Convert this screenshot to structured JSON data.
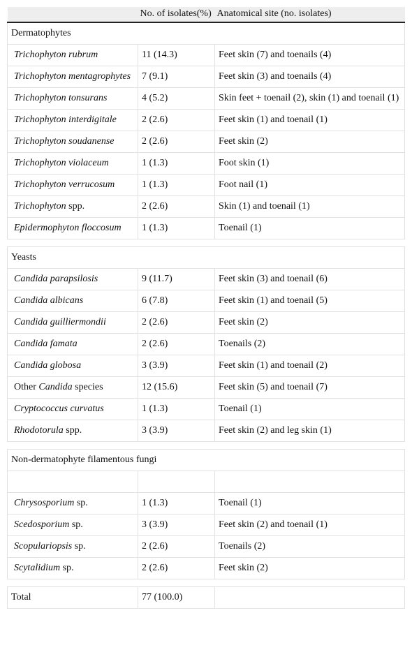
{
  "table": {
    "header": {
      "count": "No. of isolates(%)",
      "site": "Anatomical site (no. isolates)"
    },
    "sections": [
      {
        "title": "Dermatophytes",
        "rows": [
          {
            "name": [
              {
                "text": "Trichophyton rubrum",
                "italic": true
              }
            ],
            "count": "11 (14.3)",
            "site": "Feet skin (7) and toenails (4)"
          },
          {
            "name": [
              {
                "text": "Trichophyton mentagrophytes",
                "italic": true
              }
            ],
            "count": "7 (9.1)",
            "site": "Feet skin (3) and toenails (4)"
          },
          {
            "name": [
              {
                "text": "Trichophyton tonsurans",
                "italic": true
              }
            ],
            "count": "4 (5.2)",
            "site": "Skin feet + toenail (2), skin (1) and toenail (1)"
          },
          {
            "name": [
              {
                "text": "Trichophyton interdigitale",
                "italic": true
              }
            ],
            "count": "2 (2.6)",
            "site": "Feet skin (1) and toenail (1)"
          },
          {
            "name": [
              {
                "text": "Trichophyton soudanense",
                "italic": true
              }
            ],
            "count": "2 (2.6)",
            "site": "Feet skin (2)"
          },
          {
            "name": [
              {
                "text": "Trichophyton violaceum",
                "italic": true
              }
            ],
            "count": "1 (1.3)",
            "site": "Foot skin (1)"
          },
          {
            "name": [
              {
                "text": "Trichophyton verrucosum",
                "italic": true
              }
            ],
            "count": "1 (1.3)",
            "site": "Foot nail (1)"
          },
          {
            "name": [
              {
                "text": "Trichophyton",
                "italic": true
              },
              {
                "text": "spp.",
                "italic": false
              }
            ],
            "count": "2 (2.6)",
            "site": "Skin (1) and toenail (1)"
          },
          {
            "name": [
              {
                "text": "Epidermophyton floccosum",
                "italic": true
              }
            ],
            "count": "1 (1.3)",
            "site": "Toenail (1)"
          }
        ]
      },
      {
        "title": "Yeasts",
        "rows": [
          {
            "name": [
              {
                "text": "Candida parapsilosis",
                "italic": true
              }
            ],
            "count": "9 (11.7)",
            "site": "Feet skin (3) and toenail (6)"
          },
          {
            "name": [
              {
                "text": "Candida albicans",
                "italic": true
              }
            ],
            "count": "6 (7.8)",
            "site": "Feet skin (1) and toenail (5)"
          },
          {
            "name": [
              {
                "text": "Candida guilliermondii",
                "italic": true
              }
            ],
            "count": "2 (2.6)",
            "site": "Feet skin (2)"
          },
          {
            "name": [
              {
                "text": "Candida famata",
                "italic": true
              }
            ],
            "count": "2 (2.6)",
            "site": "Toenails (2)"
          },
          {
            "name": [
              {
                "text": "Candida globosa",
                "italic": true
              }
            ],
            "count": "3 (3.9)",
            "site": "Feet skin (1) and toenail (2)"
          },
          {
            "name": [
              {
                "text": "Other",
                "italic": false
              },
              {
                "text": "Candida",
                "italic": true
              },
              {
                "text": "species",
                "italic": false
              }
            ],
            "count": "12 (15.6)",
            "site": "Feet skin (5) and toenail (7)"
          },
          {
            "name": [
              {
                "text": "Cryptococcus curvatus",
                "italic": true
              }
            ],
            "count": "1 (1.3)",
            "site": "Toenail (1)"
          },
          {
            "name": [
              {
                "text": "Rhodotorula",
                "italic": true
              },
              {
                "text": "spp.",
                "italic": false
              }
            ],
            "count": "3 (3.9)",
            "site": "Feet skin (2) and leg skin (1)"
          }
        ]
      },
      {
        "title": "Non-dermatophyte filamentous fungi",
        "blank_first_row": true,
        "rows": [
          {
            "name": [
              {
                "text": "Chrysosporium",
                "italic": true
              },
              {
                "text": "sp.",
                "italic": false
              }
            ],
            "count": "1 (1.3)",
            "site": "Toenail (1)"
          },
          {
            "name": [
              {
                "text": "Scedosporium",
                "italic": true
              },
              {
                "text": "sp.",
                "italic": false
              }
            ],
            "count": "3 (3.9)",
            "site": "Feet skin (2) and toenail (1)"
          },
          {
            "name": [
              {
                "text": "Scopulariopsis",
                "italic": true
              },
              {
                "text": "sp.",
                "italic": false
              }
            ],
            "count": "2 (2.6)",
            "site": "Toenails (2)"
          },
          {
            "name": [
              {
                "text": "Scytalidium",
                "italic": true
              },
              {
                "text": "sp.",
                "italic": false
              }
            ],
            "count": "2 (2.6)",
            "site": "Feet skin (2)"
          }
        ]
      }
    ],
    "total": {
      "label": "Total",
      "count": "77 (100.0)"
    }
  }
}
